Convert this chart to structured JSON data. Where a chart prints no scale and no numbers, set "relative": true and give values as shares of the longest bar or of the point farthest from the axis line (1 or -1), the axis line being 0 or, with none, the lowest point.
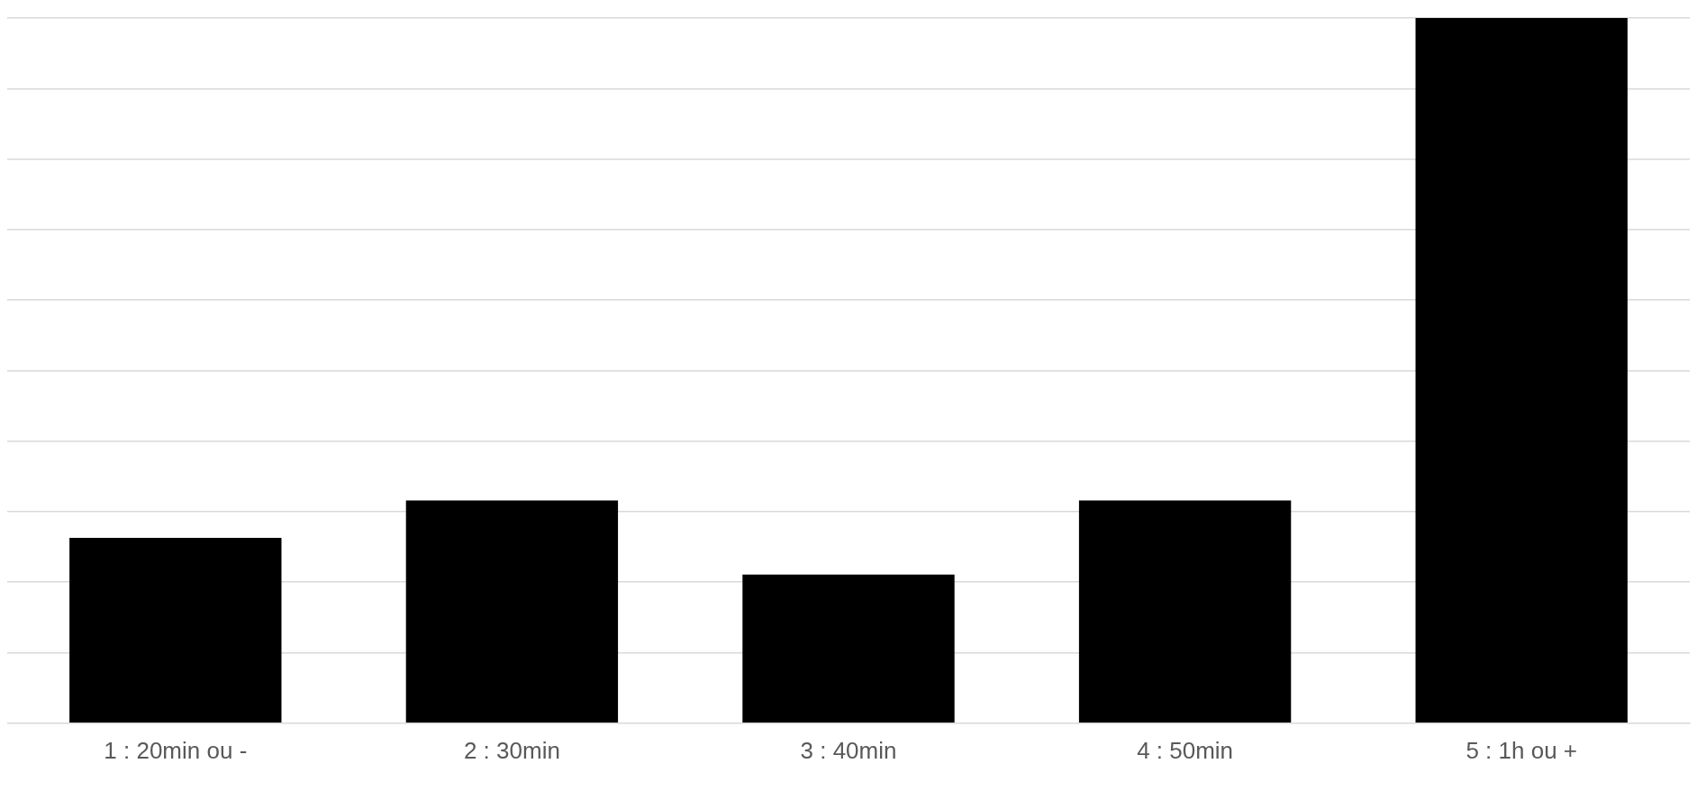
{
  "chart_data": {
    "type": "bar",
    "relative": true,
    "categories": [
      "1 : 20min ou -",
      "2 : 30min",
      "3 : 40min",
      "4 : 50min",
      "5 : 1h ou +"
    ],
    "values": [
      0.263,
      0.316,
      0.211,
      0.316,
      1
    ],
    "color": "#000000",
    "grid": "y",
    "legend": false
  }
}
